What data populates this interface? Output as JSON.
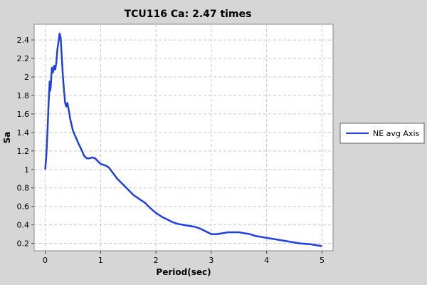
{
  "chart_data": {
    "type": "line",
    "title": "TCU116 Ca: 2.47 times",
    "xlabel": "Period(sec)",
    "ylabel": "Sa",
    "xlim": [
      -0.2,
      5.2
    ],
    "ylim": [
      0.12,
      2.57
    ],
    "x_ticks": [
      0,
      1,
      2,
      3,
      4,
      5
    ],
    "y_ticks": [
      0.2,
      0.4,
      0.6,
      0.8,
      1,
      1.2,
      1.4,
      1.6,
      1.8,
      2,
      2.2,
      2.4
    ],
    "grid": true,
    "legend_position": "right",
    "series": [
      {
        "name": "NE avg Axis",
        "color": "#1f3fe0",
        "x": [
          0,
          0.02,
          0.04,
          0.06,
          0.08,
          0.09,
          0.1,
          0.12,
          0.14,
          0.16,
          0.18,
          0.2,
          0.22,
          0.24,
          0.26,
          0.28,
          0.3,
          0.32,
          0.34,
          0.36,
          0.38,
          0.4,
          0.42,
          0.45,
          0.5,
          0.55,
          0.6,
          0.65,
          0.7,
          0.75,
          0.8,
          0.85,
          0.9,
          0.95,
          1.0,
          1.05,
          1.1,
          1.15,
          1.2,
          1.3,
          1.4,
          1.5,
          1.6,
          1.7,
          1.8,
          1.9,
          2.0,
          2.1,
          2.2,
          2.3,
          2.4,
          2.5,
          2.6,
          2.7,
          2.8,
          2.9,
          3.0,
          3.1,
          3.2,
          3.3,
          3.4,
          3.5,
          3.6,
          3.7,
          3.8,
          3.9,
          4.0,
          4.2,
          4.4,
          4.6,
          4.8,
          5.0
        ],
        "y": [
          1.0,
          1.15,
          1.4,
          1.7,
          1.95,
          1.85,
          1.9,
          2.1,
          2.05,
          2.12,
          2.08,
          2.15,
          2.3,
          2.38,
          2.47,
          2.42,
          2.2,
          2.0,
          1.85,
          1.72,
          1.68,
          1.72,
          1.66,
          1.55,
          1.42,
          1.35,
          1.28,
          1.22,
          1.15,
          1.12,
          1.12,
          1.13,
          1.12,
          1.09,
          1.06,
          1.05,
          1.04,
          1.02,
          0.98,
          0.9,
          0.84,
          0.78,
          0.72,
          0.68,
          0.64,
          0.58,
          0.53,
          0.49,
          0.46,
          0.43,
          0.41,
          0.4,
          0.39,
          0.38,
          0.36,
          0.33,
          0.3,
          0.3,
          0.31,
          0.32,
          0.32,
          0.32,
          0.31,
          0.3,
          0.28,
          0.27,
          0.26,
          0.24,
          0.22,
          0.2,
          0.19,
          0.17
        ]
      }
    ]
  }
}
